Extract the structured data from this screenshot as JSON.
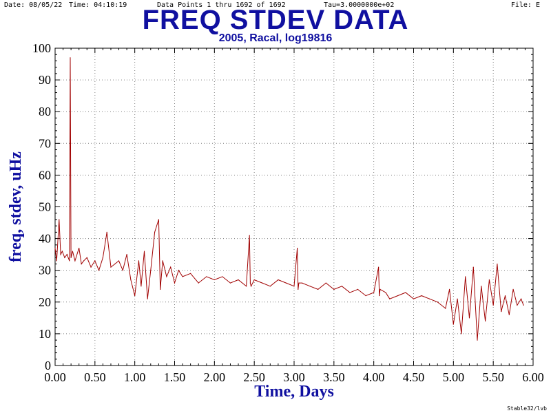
{
  "header": {
    "date": "Date: 08/05/22",
    "time": "Time: 04:10:19",
    "points": "Data Points 1 thru 1692 of 1692",
    "tau": "Tau=3.0000000e+02",
    "file": "File: E"
  },
  "footer": "Stable32/lvb",
  "colors": {
    "title": "#1010a0",
    "line": "#a00000",
    "grid": "#808080"
  },
  "chart_data": {
    "type": "line",
    "title": "FREQ STDEV DATA",
    "subtitle": "2005, Racal, log19816",
    "xlabel": "Time, Days",
    "ylabel": "freq, stdev, uHz",
    "xlim": [
      0,
      6
    ],
    "ylim": [
      0,
      100
    ],
    "x_ticks": [
      "0.00",
      "0.50",
      "1.00",
      "1.50",
      "2.00",
      "2.50",
      "3.00",
      "3.50",
      "4.00",
      "4.50",
      "5.00",
      "5.50",
      "6.00"
    ],
    "y_ticks": [
      "0",
      "10",
      "20",
      "30",
      "40",
      "50",
      "60",
      "70",
      "80",
      "90",
      "100"
    ],
    "grid": true,
    "series": [
      {
        "x": [
          0.0,
          0.02,
          0.05,
          0.07,
          0.09,
          0.12,
          0.15,
          0.18,
          0.19,
          0.2,
          0.22,
          0.25,
          0.3,
          0.33,
          0.36,
          0.4,
          0.45,
          0.5,
          0.55,
          0.6,
          0.65,
          0.7,
          0.75,
          0.8,
          0.85,
          0.9,
          0.95,
          1.0,
          1.05,
          1.08,
          1.12,
          1.16,
          1.2,
          1.25,
          1.3,
          1.32,
          1.35,
          1.4,
          1.45,
          1.5,
          1.55,
          1.6,
          1.7,
          1.8,
          1.9,
          2.0,
          2.1,
          2.2,
          2.3,
          2.4,
          2.44,
          2.45,
          2.46,
          2.5,
          2.6,
          2.7,
          2.8,
          2.9,
          3.0,
          3.04,
          3.05,
          3.06,
          3.1,
          3.2,
          3.3,
          3.4,
          3.5,
          3.6,
          3.7,
          3.8,
          3.9,
          4.0,
          4.06,
          4.07,
          4.08,
          4.15,
          4.2,
          4.3,
          4.4,
          4.5,
          4.6,
          4.7,
          4.8,
          4.9,
          4.95,
          5.0,
          5.05,
          5.1,
          5.15,
          5.2,
          5.25,
          5.3,
          5.35,
          5.4,
          5.45,
          5.5,
          5.55,
          5.6,
          5.65,
          5.7,
          5.75,
          5.8,
          5.85,
          5.88
        ],
        "values": [
          37,
          33,
          46,
          35,
          36,
          34,
          35,
          33,
          97,
          34,
          36,
          33,
          37,
          32,
          33,
          34,
          31,
          33,
          30,
          34,
          42,
          31,
          32,
          33,
          30,
          35,
          27,
          22,
          33,
          25,
          36,
          21,
          30,
          42,
          46,
          24,
          33,
          28,
          31,
          26,
          30,
          28,
          29,
          26,
          28,
          27,
          28,
          26,
          27,
          25,
          41,
          26,
          25,
          27,
          26,
          25,
          27,
          26,
          25,
          37,
          24,
          26,
          26,
          25,
          24,
          26,
          24,
          25,
          23,
          24,
          22,
          23,
          31,
          22,
          24,
          23,
          21,
          22,
          23,
          21,
          22,
          21,
          20,
          18,
          24,
          13,
          21,
          10,
          28,
          15,
          31,
          8,
          25,
          14,
          27,
          19,
          32,
          17,
          22,
          16,
          24,
          19,
          21,
          19
        ]
      }
    ]
  }
}
